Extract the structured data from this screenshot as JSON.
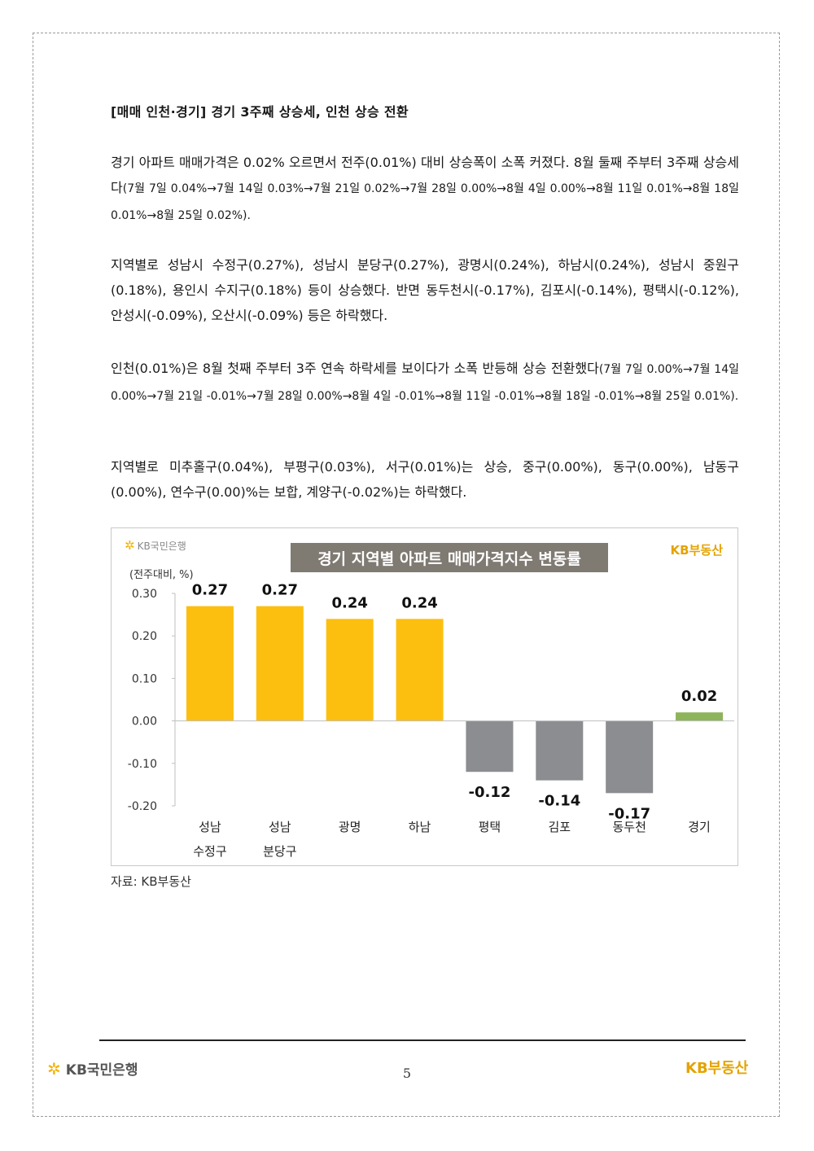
{
  "heading": "[매매 인천·경기] 경기 3주째 상승세, 인천 상승 전환",
  "p1": {
    "text": "경기 아파트 매매가격은 0.02% 오르면서 전주(0.01%) 대비 상승폭이 소폭 커졌다. 8월 둘째 주부터 3주째 상승세다",
    "small": "(7월 7일 0.04%→7월 14일 0.03%→7월 21일 0.02%→7월 28일 0.00%→8월 4일 0.00%→8월 11일 0.01%→8월 18일 0.01%→8월 25일 0.02%)."
  },
  "p2": {
    "text": "지역별로 성남시 수정구(0.27%), 성남시 분당구(0.27%), 광명시(0.24%), 하남시(0.24%), 성남시 중원구(0.18%), 용인시 수지구(0.18%) 등이 상승했다. 반면 동두천시(-0.17%), 김포시(-0.14%), 평택시(-0.12%), 안성시(-0.09%), 오산시(-0.09%) 등은 하락했다."
  },
  "p3": {
    "text": "인천(0.01%)은 8월 첫째 주부터 3주 연속 하락세를 보이다가 소폭 반등해 상승 전환했다",
    "small": "(7월 7일 0.00%→7월 14일 0.00%→7월 21일 -0.01%→7월 28일 0.00%→8월 4일 -0.01%→8월 11일 -0.01%→8월 18일 -0.01%→8월 25일 0.01%)."
  },
  "p4": {
    "text": "지역별로 미추홀구(0.04%), 부평구(0.03%), 서구(0.01%)는 상승, 중구(0.00%), 동구(0.00%), 남동구(0.00%), 연수구(0.00)%는 보합, 계양구(-0.02%)는 하락했다."
  },
  "chart_logo_left": "KB국민은행",
  "chart_logo_right": "KB부동산",
  "chart_data": {
    "type": "bar",
    "title": "경기 지역별 아파트 매매가격지수 변동률",
    "ylabel": "(전주대비, %)",
    "categories": [
      [
        "성남",
        "수정구"
      ],
      [
        "성남",
        "분당구"
      ],
      [
        "광명"
      ],
      [
        "하남"
      ],
      [
        "평택"
      ],
      [
        "김포"
      ],
      [
        "동두천"
      ],
      [
        "경기"
      ]
    ],
    "values": [
      0.27,
      0.27,
      0.24,
      0.24,
      -0.12,
      -0.14,
      -0.17,
      0.02
    ],
    "value_labels": [
      "0.27",
      "0.27",
      "0.24",
      "0.24",
      "-0.12",
      "-0.14",
      "-0.17",
      "0.02"
    ],
    "colors": [
      "#fdbf0f",
      "#fdbf0f",
      "#fdbf0f",
      "#fdbf0f",
      "#8b8d90",
      "#8b8d90",
      "#8b8d90",
      "#8db45a"
    ],
    "yticks": [
      "0.30",
      "0.20",
      "0.10",
      "0.00",
      "-0.10",
      "-0.20"
    ],
    "ytick_values": [
      0.3,
      0.2,
      0.1,
      0.0,
      -0.1,
      -0.2
    ],
    "ylim": [
      -0.2,
      0.3
    ],
    "grid": false,
    "legend": "none"
  },
  "source": "자료: KB부동산",
  "footer": {
    "logo_left": "KB국민은행",
    "page_number": "5",
    "logo_right": "KB부동산"
  }
}
